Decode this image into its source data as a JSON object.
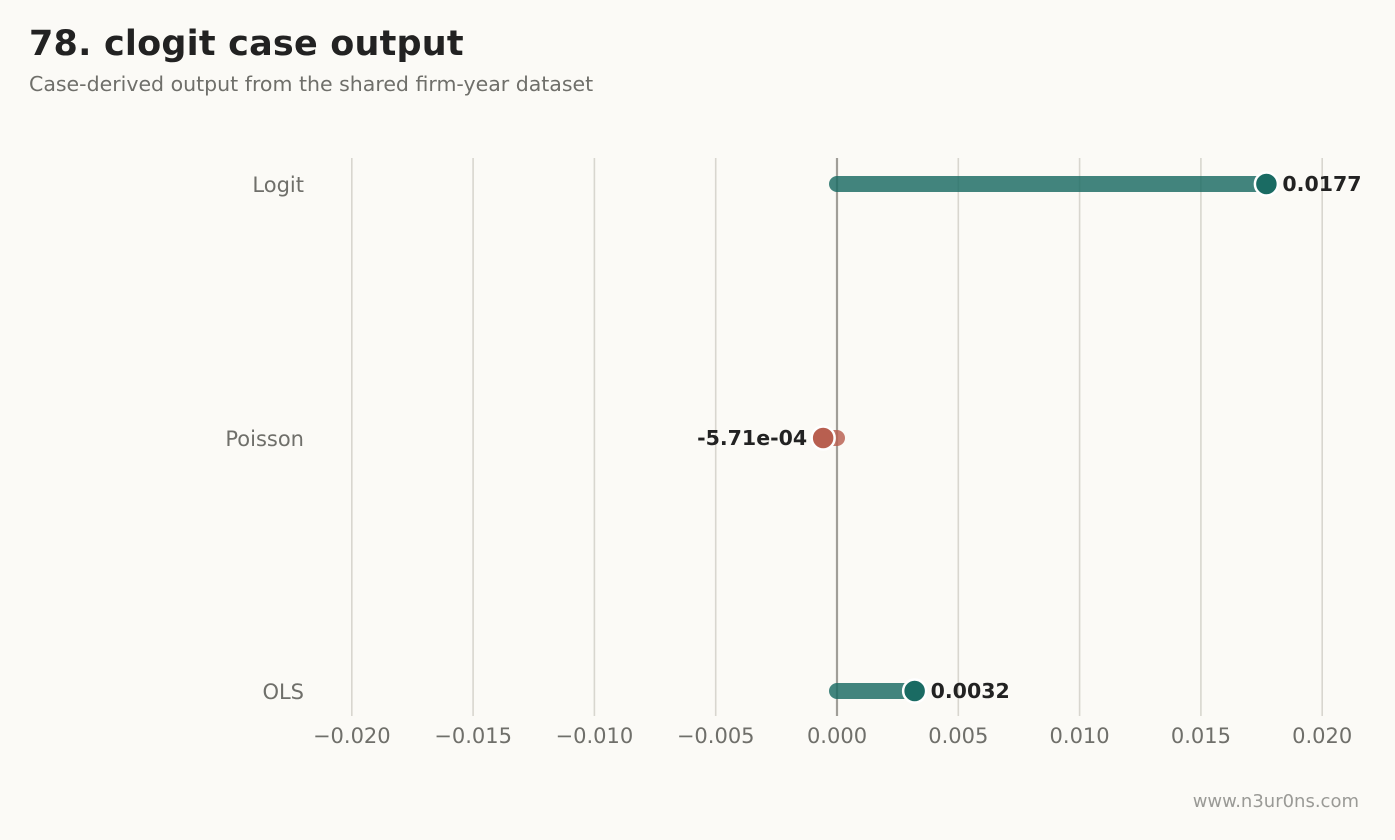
{
  "header": {
    "title": "78. clogit case output",
    "subtitle": "Case-derived output from the shared firm-year dataset"
  },
  "footer": {
    "watermark": "www.n3ur0ns.com"
  },
  "colors": {
    "background": "#fbfaf6",
    "positive": "#1a6b63",
    "negative": "#b85f50",
    "grid": "#d8d6cf",
    "zero_line": "#a09e98",
    "text_dark": "#222222",
    "text_muted": "#6f6f6a"
  },
  "chart_data": {
    "type": "lollipop",
    "orientation": "horizontal",
    "categories": [
      "Logit",
      "Poisson",
      "OLS"
    ],
    "values": [
      0.0177,
      -0.000571,
      0.0032
    ],
    "value_labels": [
      "0.0177",
      "-5.71e-04",
      "0.0032"
    ],
    "xlim": [
      -0.0215,
      0.0215
    ],
    "xticks": [
      -0.02,
      -0.015,
      -0.01,
      -0.005,
      0.0,
      0.005,
      0.01,
      0.015,
      0.02
    ],
    "xtick_labels": [
      "−0.020",
      "−0.015",
      "−0.010",
      "−0.005",
      "0.000",
      "0.005",
      "0.010",
      "0.015",
      "0.020"
    ],
    "grid": "vertical",
    "reference_line": 0,
    "title": "78. clogit case output",
    "subtitle": "Case-derived output from the shared firm-year dataset",
    "xlabel": "",
    "ylabel": ""
  }
}
